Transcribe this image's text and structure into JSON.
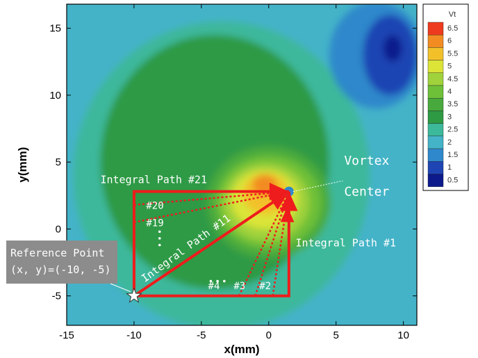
{
  "chart_data": {
    "type": "heatmap",
    "title": "",
    "xlabel": "x(mm)",
    "ylabel": "y(mm)",
    "xlim": [
      -15,
      11
    ],
    "ylim": [
      -7.2,
      16.8
    ],
    "xticks": [
      -15,
      -10,
      -5,
      0,
      5,
      10
    ],
    "yticks": [
      -5,
      0,
      5,
      10,
      15
    ],
    "xtick_labels": [
      "-15",
      "-10",
      "-5",
      "0",
      "5",
      "10"
    ],
    "ytick_labels": [
      "-5",
      "0",
      "5",
      "10",
      "15"
    ],
    "colorbar": {
      "title": "Vt",
      "position": "right",
      "levels": [
        0.5,
        1,
        1.5,
        2,
        2.5,
        3,
        3.5,
        4,
        4.5,
        5,
        5.5,
        6,
        6.5
      ],
      "labels": [
        "0.5",
        "1",
        "1.5",
        "2",
        "2.5",
        "3",
        "3.5",
        "4",
        "4.5",
        "5",
        "5.5",
        "6",
        "6.5"
      ],
      "colors": [
        "#0c1a8c",
        "#1f45b4",
        "#2f88cb",
        "#44b3c8",
        "#3cb89b",
        "#2e9a44",
        "#48aa3c",
        "#6ec039",
        "#a0d23b",
        "#dbe437",
        "#f2c12a",
        "#f28c22",
        "#ee3a1e"
      ]
    },
    "background_color": "#44b3c8",
    "regions": [
      {
        "level": 2.5,
        "center": [
          -3.5,
          4
        ],
        "radii": [
          11,
          11.5
        ]
      },
      {
        "level": 3,
        "center": [
          -4,
          5
        ],
        "radii": [
          8.5,
          9.5
        ]
      },
      {
        "level": 3.5,
        "center": [
          0,
          2
        ],
        "radii": [
          4.6,
          4.2
        ]
      },
      {
        "level": 4,
        "center": [
          0,
          2
        ],
        "radii": [
          3.9,
          3.5
        ]
      },
      {
        "level": 4.5,
        "center": [
          -0.2,
          2
        ],
        "radii": [
          3.2,
          2.9
        ]
      },
      {
        "level": 5,
        "center": [
          -0.3,
          2.2
        ],
        "radii": [
          2.5,
          2.2
        ]
      },
      {
        "level": 5.5,
        "center": [
          -0.2,
          2.6
        ],
        "radii": [
          1.7,
          1.5
        ]
      },
      {
        "level": 6,
        "center": [
          -0.3,
          3.3
        ],
        "radii": [
          0.9,
          0.8
        ]
      },
      {
        "level": 1.5,
        "center": [
          8,
          13
        ],
        "radii": [
          3.5,
          4
        ]
      },
      {
        "level": 1,
        "center": [
          9,
          13
        ],
        "radii": [
          2,
          3
        ]
      },
      {
        "level": 0.5,
        "center": [
          9.2,
          13.5
        ],
        "radii": [
          0.7,
          1
        ]
      }
    ],
    "vortex_center": [
      1.5,
      2.8
    ],
    "reference_point": [
      -10,
      -5
    ],
    "path_frame": {
      "x": [
        -10,
        1.5
      ],
      "y": [
        -5,
        2.8
      ]
    },
    "integral_paths_solid": [
      {
        "label": "Integral Path #21",
        "from": [
          -10,
          -5
        ],
        "via": [
          -10,
          2.8
        ],
        "to": [
          1.5,
          2.8
        ]
      },
      {
        "label": "Integral Path #11",
        "from": [
          -10,
          -5
        ],
        "to": [
          1.5,
          2.8
        ]
      },
      {
        "label": "Integral Path #1",
        "from": [
          -10,
          -5
        ],
        "via": [
          1.5,
          -5
        ],
        "to": [
          1.5,
          2.8
        ]
      }
    ],
    "integral_paths_dotted": [
      {
        "label": "#20",
        "from": [
          -10,
          1.8
        ],
        "to": [
          1.5,
          2.8
        ]
      },
      {
        "label": "#19",
        "from": [
          -10,
          0.5
        ],
        "to": [
          1.5,
          2.8
        ]
      },
      {
        "label": "#4",
        "from": [
          -2.2,
          -5
        ],
        "to": [
          1.5,
          2.8
        ]
      },
      {
        "label": "#3",
        "from": [
          -1,
          -5
        ],
        "to": [
          1.5,
          2.8
        ]
      },
      {
        "label": "#2",
        "from": [
          0.3,
          -5
        ],
        "to": [
          1.5,
          2.8
        ]
      }
    ],
    "annotations": {
      "vortex_center_label": [
        "Vortex",
        "Center"
      ],
      "path21": "Integral Path #21",
      "path11": "Integral Path #11",
      "path1": "Integral Path #1",
      "p20": "#20",
      "p19": "#19",
      "p4": "#4",
      "p3": "#3",
      "p2": "#2",
      "reference_point_label": [
        "Reference Point",
        "(x, y)=(-10, -5)"
      ]
    },
    "path_color": "#ee1c1c",
    "label_box_color": "#8c8c8c"
  }
}
